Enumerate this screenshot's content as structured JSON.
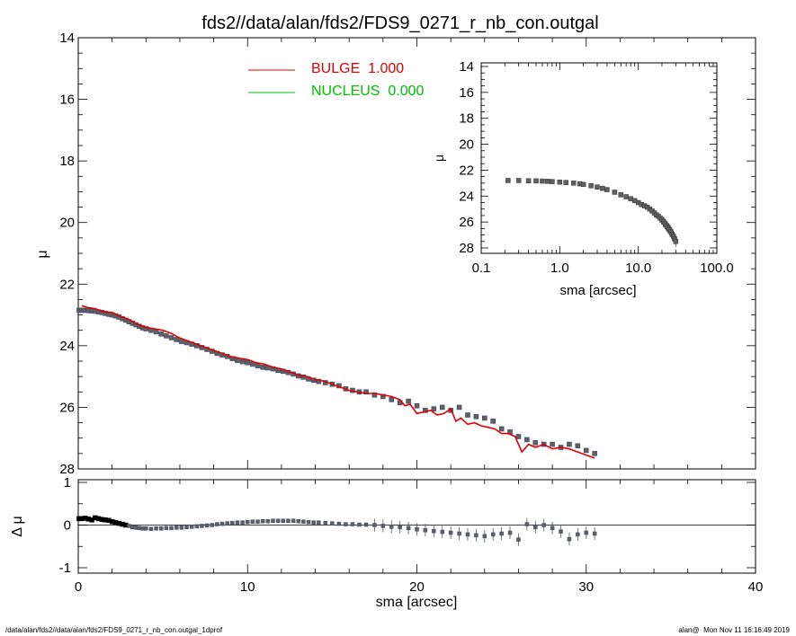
{
  "title": "fds2//data/alan/fds2/FDS9_0271_r_nb_con.outgal",
  "footer_left": "/data/alan/fds2//data/alan/fds2/FDS9_0271_r_nb_con.outgal_1dprof",
  "footer_right": "alan@  Mon Nov 11 16:16:49 2019",
  "colors": {
    "bulge": "#e00000",
    "nucleus": "#00c000",
    "data": "#606060",
    "data_edge": "#3a4a70"
  },
  "legend": [
    {
      "label": "BULGE  1.000",
      "color": "#e00000"
    },
    {
      "label": "NUCLEUS  0.000",
      "color": "#00c000"
    }
  ],
  "chart_data": [
    {
      "type": "scatter",
      "panel": "main",
      "xlabel": "",
      "ylabel": "μ",
      "xlim": [
        0,
        40
      ],
      "ylim": [
        28,
        14
      ],
      "y_inverted": true,
      "x_ticks": [
        0,
        10,
        20,
        30,
        40
      ],
      "y_ticks": [
        14,
        16,
        18,
        20,
        22,
        24,
        26,
        28
      ],
      "series": [
        {
          "name": "BULGE",
          "style": "line",
          "color": "#e00000",
          "x": [
            0.2,
            0.5,
            1.0,
            1.5,
            2.0,
            2.5,
            3.0,
            3.5,
            4.0,
            4.5,
            5.0,
            5.5,
            6.0,
            6.5,
            7.0,
            7.5,
            8.0,
            8.5,
            9.0,
            9.5,
            10.0,
            10.5,
            11.0,
            11.5,
            12.0,
            12.5,
            13.0,
            13.5,
            14.0,
            14.5,
            15.0,
            15.5,
            16.0,
            16.5,
            17.0,
            17.5,
            18.0,
            18.5,
            19.0,
            19.3,
            19.6,
            20.0,
            20.4,
            20.8,
            21.2,
            21.6,
            22.0,
            22.3,
            22.6,
            23.0,
            23.4,
            23.8,
            24.2,
            24.6,
            25.0,
            25.4,
            25.8,
            26.2,
            26.6,
            27.0,
            27.5,
            28.0,
            28.5,
            29.0,
            29.5,
            30.0,
            30.5
          ],
          "y": [
            22.7,
            22.75,
            22.8,
            22.9,
            22.92,
            23.05,
            23.15,
            23.3,
            23.4,
            23.45,
            23.5,
            23.6,
            23.75,
            23.85,
            23.95,
            24.05,
            24.15,
            24.25,
            24.35,
            24.4,
            24.45,
            24.55,
            24.6,
            24.7,
            24.75,
            24.85,
            24.95,
            25.0,
            25.1,
            25.15,
            25.25,
            25.35,
            25.45,
            25.5,
            25.55,
            25.55,
            25.6,
            25.65,
            25.75,
            25.95,
            25.9,
            26.2,
            26.15,
            26.1,
            26.25,
            26.2,
            26.05,
            26.45,
            26.35,
            26.55,
            26.5,
            26.6,
            26.65,
            26.7,
            26.85,
            26.85,
            26.95,
            27.45,
            27.2,
            27.3,
            27.2,
            27.35,
            27.3,
            27.35,
            27.45,
            27.55,
            27.65
          ]
        },
        {
          "name": "",
          "style": "markers",
          "color": "#606060",
          "x": [
            0.05,
            0.2,
            0.4,
            0.6,
            0.8,
            1.0,
            1.2,
            1.4,
            1.6,
            1.8,
            2.0,
            2.2,
            2.4,
            2.6,
            2.8,
            3.0,
            3.2,
            3.4,
            3.6,
            3.8,
            4.0,
            4.3,
            4.6,
            4.9,
            5.2,
            5.5,
            5.8,
            6.1,
            6.4,
            6.7,
            7.0,
            7.3,
            7.6,
            7.9,
            8.2,
            8.5,
            8.8,
            9.1,
            9.4,
            9.7,
            10.0,
            10.3,
            10.6,
            10.9,
            11.2,
            11.5,
            11.8,
            12.1,
            12.4,
            12.7,
            13.0,
            13.3,
            13.6,
            13.9,
            14.2,
            14.6,
            15.0,
            15.4,
            15.8,
            16.2,
            16.6,
            17.0,
            17.5,
            18.0,
            18.5,
            19.0,
            19.5,
            20.0,
            20.5,
            21.0,
            21.5,
            22.0,
            22.5,
            23.0,
            23.5,
            24.0,
            24.5,
            25.0,
            25.5,
            26.0,
            26.5,
            27.0,
            27.5,
            28.0,
            28.5,
            29.0,
            29.5,
            30.0,
            30.5
          ],
          "y": [
            22.85,
            22.85,
            22.85,
            22.86,
            22.87,
            22.88,
            22.9,
            22.92,
            22.95,
            22.98,
            23.0,
            23.03,
            23.07,
            23.12,
            23.17,
            23.22,
            23.27,
            23.32,
            23.37,
            23.42,
            23.45,
            23.5,
            23.55,
            23.62,
            23.68,
            23.74,
            23.8,
            23.86,
            23.9,
            23.95,
            24.0,
            24.06,
            24.12,
            24.18,
            24.25,
            24.3,
            24.35,
            24.42,
            24.48,
            24.52,
            24.55,
            24.6,
            24.65,
            24.7,
            24.72,
            24.75,
            24.8,
            24.83,
            24.87,
            24.92,
            24.98,
            25.02,
            25.08,
            25.12,
            25.16,
            25.2,
            25.25,
            25.3,
            25.4,
            25.45,
            25.5,
            25.5,
            25.6,
            25.65,
            25.75,
            25.85,
            25.8,
            25.95,
            26.1,
            26.05,
            26.0,
            26.1,
            26.0,
            26.25,
            26.3,
            26.35,
            26.45,
            26.7,
            26.8,
            26.95,
            27.05,
            27.15,
            27.2,
            27.2,
            27.3,
            27.2,
            27.25,
            27.4,
            27.5
          ]
        }
      ]
    },
    {
      "type": "scatter",
      "panel": "residual",
      "xlabel": "sma [arcsec]",
      "ylabel": "Δ μ",
      "xlim": [
        0,
        40
      ],
      "ylim": [
        -1,
        1
      ],
      "x_ticks": [
        0,
        10,
        20,
        30,
        40
      ],
      "y_ticks": [
        -1,
        0,
        1
      ],
      "x": [
        0.05,
        0.2,
        0.4,
        0.6,
        0.8,
        1.0,
        1.2,
        1.4,
        1.6,
        1.8,
        2.0,
        2.2,
        2.4,
        2.6,
        2.8,
        3.0,
        3.2,
        3.4,
        3.6,
        3.8,
        4.0,
        4.3,
        4.6,
        4.9,
        5.2,
        5.5,
        5.8,
        6.1,
        6.4,
        6.7,
        7.0,
        7.3,
        7.6,
        7.9,
        8.2,
        8.5,
        8.8,
        9.1,
        9.4,
        9.7,
        10.0,
        10.3,
        10.6,
        10.9,
        11.2,
        11.5,
        11.8,
        12.1,
        12.4,
        12.7,
        13.0,
        13.3,
        13.6,
        13.9,
        14.2,
        14.6,
        15.0,
        15.4,
        15.8,
        16.2,
        16.6,
        17.0,
        17.5,
        18.0,
        18.5,
        19.0,
        19.5,
        20.0,
        20.5,
        21.0,
        21.5,
        22.0,
        22.5,
        23.0,
        23.5,
        24.0,
        24.5,
        25.0,
        25.5,
        26.0,
        26.5,
        27.0,
        27.5,
        28.0,
        28.5,
        29.0,
        29.5,
        30.0,
        30.5
      ],
      "y": [
        0.15,
        0.15,
        0.16,
        0.14,
        0.12,
        0.17,
        0.15,
        0.13,
        0.12,
        0.11,
        0.08,
        0.06,
        0.04,
        0.02,
        0.0,
        -0.02,
        -0.05,
        -0.06,
        -0.07,
        -0.08,
        -0.08,
        -0.09,
        -0.08,
        -0.08,
        -0.07,
        -0.07,
        -0.06,
        -0.06,
        -0.05,
        -0.04,
        -0.03,
        -0.02,
        -0.01,
        0.0,
        0.02,
        0.03,
        0.04,
        0.05,
        0.06,
        0.06,
        0.07,
        0.08,
        0.08,
        0.09,
        0.09,
        0.1,
        0.1,
        0.1,
        0.1,
        0.1,
        0.09,
        0.08,
        0.07,
        0.06,
        0.06,
        0.05,
        0.04,
        0.03,
        0.02,
        0.02,
        0.01,
        0.01,
        0.0,
        -0.02,
        -0.04,
        -0.05,
        -0.07,
        -0.1,
        -0.12,
        -0.14,
        -0.16,
        -0.18,
        -0.2,
        -0.22,
        -0.24,
        -0.26,
        -0.22,
        -0.2,
        -0.18,
        -0.34,
        0.02,
        -0.05,
        0.0,
        -0.07,
        -0.15,
        -0.33,
        -0.22,
        -0.18,
        -0.2
      ]
    },
    {
      "type": "scatter",
      "panel": "inset",
      "xlabel": "sma [arcsec]",
      "ylabel": "μ",
      "x_scale": "log",
      "xlim": [
        0.1,
        100
      ],
      "ylim": [
        28,
        14
      ],
      "y_inverted": true,
      "x_ticks": [
        0.1,
        1.0,
        10.0,
        100.0
      ],
      "x_tick_labels": [
        "0.1",
        "1.0",
        "10.0",
        "100.0"
      ],
      "y_ticks": [
        14,
        16,
        18,
        20,
        22,
        24,
        26,
        28
      ],
      "x": [
        0.22,
        0.3,
        0.4,
        0.5,
        0.6,
        0.7,
        0.8,
        1.0,
        1.2,
        1.5,
        1.8,
        2.0,
        2.5,
        3.0,
        3.5,
        4.0,
        5.0,
        6.0,
        7.0,
        8.0,
        9.0,
        10.0,
        11.0,
        12.0,
        13.0,
        14.0,
        15.0,
        16.0,
        17.0,
        18.0,
        19.0,
        20.0,
        21.0,
        22.0,
        23.0,
        24.0,
        25.0,
        26.0,
        27.0,
        28.0,
        29.0,
        30.0
      ],
      "y": [
        22.8,
        22.8,
        22.82,
        22.83,
        22.84,
        22.86,
        22.88,
        22.92,
        22.95,
        23.0,
        23.05,
        23.1,
        23.2,
        23.3,
        23.4,
        23.5,
        23.7,
        23.9,
        24.05,
        24.2,
        24.35,
        24.5,
        24.65,
        24.75,
        24.85,
        25.0,
        25.15,
        25.3,
        25.45,
        25.55,
        25.7,
        25.85,
        26.0,
        26.15,
        26.3,
        26.45,
        26.6,
        26.75,
        26.95,
        27.1,
        27.3,
        27.5
      ]
    }
  ]
}
